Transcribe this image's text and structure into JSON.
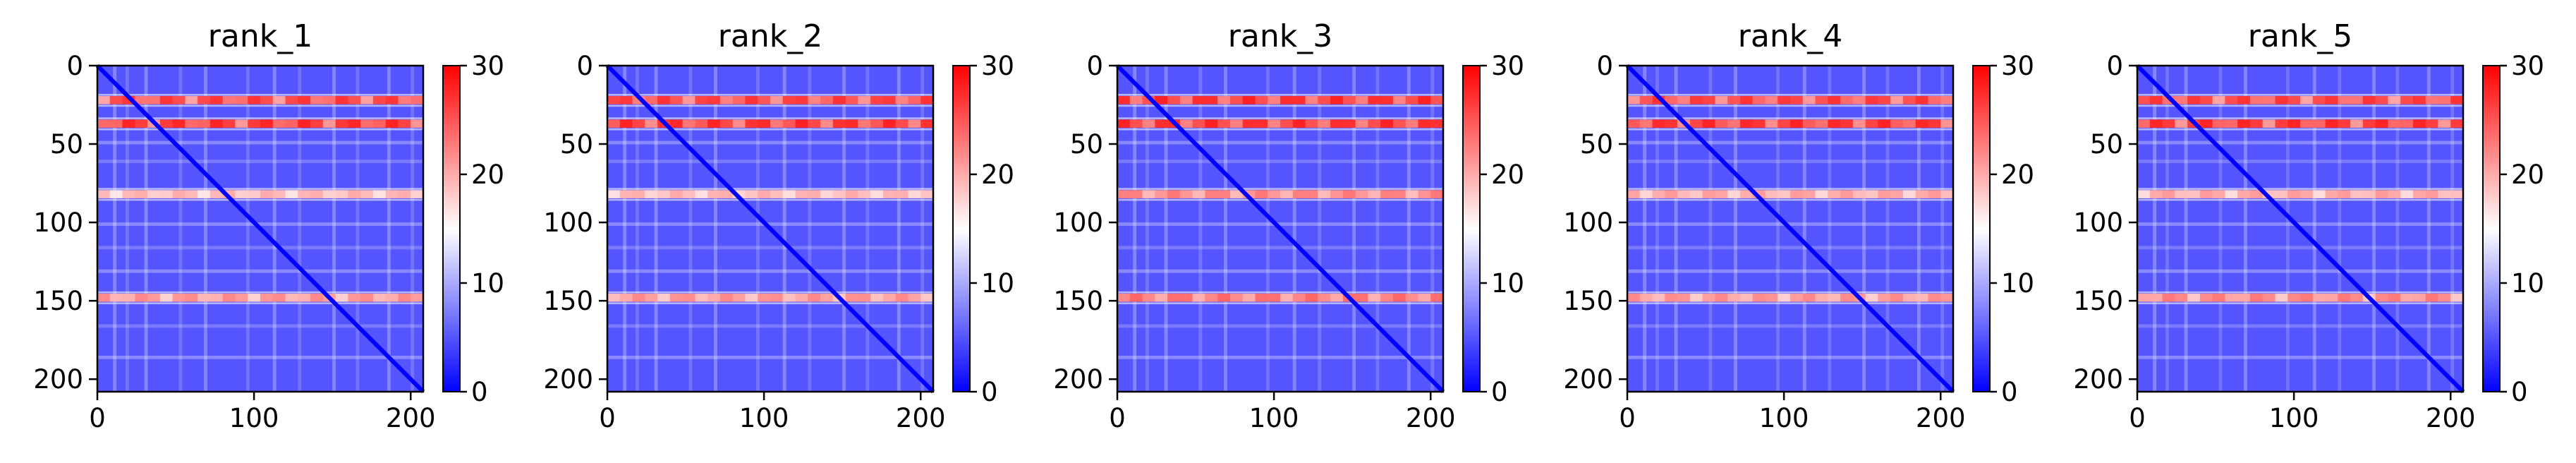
{
  "chart_data": [
    {
      "type": "heatmap",
      "title": "rank_1",
      "xlim": [
        0,
        208
      ],
      "ylim": [
        208,
        0
      ],
      "xticks": [
        0,
        100,
        200
      ],
      "yticks": [
        0,
        50,
        100,
        150,
        200
      ],
      "colorbar": {
        "min": 0,
        "max": 30,
        "ticks": [
          0,
          10,
          20,
          30
        ],
        "colormap": "bwr"
      },
      "hot_bands": [
        {
          "row": 22,
          "x_start": 0,
          "x_end": 208,
          "level": 27
        },
        {
          "row": 37,
          "x_start": 0,
          "x_end": 208,
          "level": 28
        },
        {
          "row": 82,
          "x_start": 0,
          "x_end": 208,
          "level": 20
        },
        {
          "row": 148,
          "x_start": 0,
          "x_end": 208,
          "level": 22
        }
      ],
      "diagonal_value": 0,
      "background_value": 5
    },
    {
      "type": "heatmap",
      "title": "rank_2",
      "xlim": [
        0,
        208
      ],
      "ylim": [
        208,
        0
      ],
      "xticks": [
        0,
        100,
        200
      ],
      "yticks": [
        0,
        50,
        100,
        150,
        200
      ],
      "colorbar": {
        "min": 0,
        "max": 30,
        "ticks": [
          0,
          10,
          20,
          30
        ],
        "colormap": "bwr"
      },
      "hot_bands": [
        {
          "row": 22,
          "x_start": 0,
          "x_end": 208,
          "level": 27
        },
        {
          "row": 37,
          "x_start": 0,
          "x_end": 208,
          "level": 28
        },
        {
          "row": 82,
          "x_start": 0,
          "x_end": 208,
          "level": 20
        },
        {
          "row": 148,
          "x_start": 0,
          "x_end": 208,
          "level": 22
        }
      ],
      "diagonal_value": 0,
      "background_value": 5
    },
    {
      "type": "heatmap",
      "title": "rank_3",
      "xlim": [
        0,
        208
      ],
      "ylim": [
        208,
        0
      ],
      "xticks": [
        0,
        100,
        200
      ],
      "yticks": [
        0,
        50,
        100,
        150,
        200
      ],
      "colorbar": {
        "min": 0,
        "max": 30,
        "ticks": [
          0,
          10,
          20,
          30
        ],
        "colormap": "bwr"
      },
      "hot_bands": [
        {
          "row": 22,
          "x_start": 0,
          "x_end": 208,
          "level": 28
        },
        {
          "row": 37,
          "x_start": 0,
          "x_end": 208,
          "level": 28
        },
        {
          "row": 82,
          "x_start": 0,
          "x_end": 208,
          "level": 23
        },
        {
          "row": 148,
          "x_start": 0,
          "x_end": 208,
          "level": 24
        }
      ],
      "diagonal_value": 0,
      "background_value": 5
    },
    {
      "type": "heatmap",
      "title": "rank_4",
      "xlim": [
        0,
        208
      ],
      "ylim": [
        208,
        0
      ],
      "xticks": [
        0,
        100,
        200
      ],
      "yticks": [
        0,
        50,
        100,
        150,
        200
      ],
      "colorbar": {
        "min": 0,
        "max": 30,
        "ticks": [
          0,
          10,
          20,
          30
        ],
        "colormap": "bwr"
      },
      "hot_bands": [
        {
          "row": 22,
          "x_start": 0,
          "x_end": 208,
          "level": 27
        },
        {
          "row": 37,
          "x_start": 0,
          "x_end": 208,
          "level": 28
        },
        {
          "row": 82,
          "x_start": 0,
          "x_end": 208,
          "level": 21
        },
        {
          "row": 148,
          "x_start": 0,
          "x_end": 208,
          "level": 22
        }
      ],
      "diagonal_value": 0,
      "background_value": 5
    },
    {
      "type": "heatmap",
      "title": "rank_5",
      "xlim": [
        0,
        208
      ],
      "ylim": [
        208,
        0
      ],
      "xticks": [
        0,
        100,
        200
      ],
      "yticks": [
        0,
        50,
        100,
        150,
        200
      ],
      "colorbar": {
        "min": 0,
        "max": 30,
        "ticks": [
          0,
          10,
          20,
          30
        ],
        "colormap": "bwr"
      },
      "hot_bands": [
        {
          "row": 22,
          "x_start": 0,
          "x_end": 208,
          "level": 27
        },
        {
          "row": 37,
          "x_start": 0,
          "x_end": 208,
          "level": 28
        },
        {
          "row": 82,
          "x_start": 0,
          "x_end": 208,
          "level": 21
        },
        {
          "row": 148,
          "x_start": 0,
          "x_end": 208,
          "level": 23
        }
      ],
      "diagonal_value": 0,
      "background_value": 5
    }
  ]
}
